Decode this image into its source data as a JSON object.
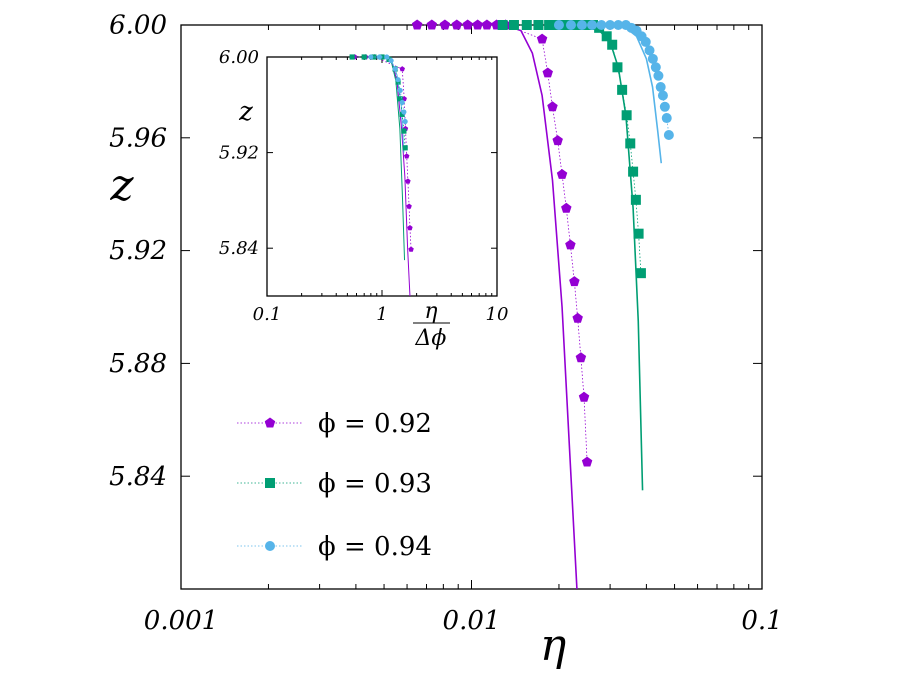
{
  "chart_data": [
    {
      "type": "scatter",
      "panel": "main",
      "xlabel": "η",
      "ylabel": "z",
      "xscale": "log",
      "xlim": [
        0.001,
        0.1
      ],
      "ylim": [
        5.8,
        6.0
      ],
      "xticks": [
        0.001,
        0.01,
        0.1
      ],
      "xtick_labels": [
        "0.001",
        "0.01",
        "0.1"
      ],
      "yticks": [
        5.84,
        5.88,
        5.92,
        5.96,
        6.0
      ],
      "ytick_labels": [
        "5.84",
        "5.88",
        "5.92",
        "5.96",
        "6.00"
      ],
      "grid": false,
      "legend_position": "bottom-left",
      "series": [
        {
          "name": "ϕ = 0.92",
          "color": "#9400D3",
          "marker": "pentagon",
          "x": [
            0.0065,
            0.0073,
            0.0081,
            0.0089,
            0.0097,
            0.0105,
            0.0113,
            0.0122,
            0.0131,
            0.0175,
            0.0183,
            0.019,
            0.0198,
            0.0205,
            0.0212,
            0.0219,
            0.0226,
            0.0232,
            0.0238,
            0.0244,
            0.025
          ],
          "y": [
            6.0,
            6.0,
            6.0,
            6.0,
            6.0,
            6.0,
            6.0,
            6.0,
            6.0,
            5.995,
            5.983,
            5.971,
            5.959,
            5.947,
            5.935,
            5.922,
            5.909,
            5.896,
            5.882,
            5.868,
            5.845
          ]
        },
        {
          "name": "ϕ = 0.93",
          "color": "#009E73",
          "marker": "square",
          "x": [
            0.0128,
            0.014,
            0.0155,
            0.017,
            0.0185,
            0.02,
            0.0215,
            0.023,
            0.0245,
            0.0262,
            0.0275,
            0.0292,
            0.0305,
            0.0318,
            0.033,
            0.0342,
            0.0352,
            0.036,
            0.0368,
            0.0376,
            0.0383
          ],
          "y": [
            6.0,
            6.0,
            6.0,
            6.0,
            6.0,
            6.0,
            6.0,
            6.0,
            6.0,
            6.0,
            5.999,
            5.996,
            5.993,
            5.985,
            5.977,
            5.968,
            5.958,
            5.948,
            5.938,
            5.926,
            5.912
          ]
        },
        {
          "name": "ϕ = 0.94",
          "color": "#56B4E9",
          "marker": "circle",
          "x": [
            0.02,
            0.022,
            0.024,
            0.026,
            0.028,
            0.03,
            0.032,
            0.034,
            0.0355,
            0.037,
            0.0385,
            0.0398,
            0.041,
            0.0421,
            0.0431,
            0.044,
            0.0448,
            0.0456,
            0.0463,
            0.047,
            0.0478
          ],
          "y": [
            6.0,
            6.0,
            6.0,
            6.0,
            6.0,
            6.0,
            6.0,
            6.0,
            5.999,
            5.998,
            5.996,
            5.994,
            5.991,
            5.988,
            5.985,
            5.982,
            5.978,
            5.975,
            5.971,
            5.967,
            5.961
          ]
        }
      ],
      "fit_lines": [
        {
          "color": "#9400D3",
          "x": [
            0.013,
            0.0148,
            0.0162,
            0.0175,
            0.019,
            0.0205,
            0.022,
            0.0232
          ],
          "y": [
            6.0,
            5.998,
            5.99,
            5.975,
            5.945,
            5.9,
            5.84,
            5.795
          ]
        },
        {
          "color": "#009E73",
          "x": [
            0.024,
            0.027,
            0.03,
            0.032,
            0.034,
            0.036,
            0.0375,
            0.0388
          ],
          "y": [
            6.0,
            5.999,
            5.994,
            5.985,
            5.968,
            5.935,
            5.895,
            5.835
          ]
        },
        {
          "color": "#56B4E9",
          "x": [
            0.03,
            0.034,
            0.037,
            0.04,
            0.042,
            0.0438,
            0.045
          ],
          "y": [
            6.0,
            5.999,
            5.996,
            5.988,
            5.978,
            5.962,
            5.951
          ]
        }
      ]
    },
    {
      "type": "scatter",
      "panel": "inset",
      "xlabel_num": "η",
      "xlabel_den": "Δϕ",
      "ylabel": "z",
      "xscale": "log",
      "xlim": [
        0.1,
        10
      ],
      "ylim": [
        5.8,
        6.0
      ],
      "xticks": [
        0.1,
        1,
        10
      ],
      "xtick_labels": [
        "0.1",
        "1",
        "10"
      ],
      "yticks": [
        5.84,
        5.92,
        6.0
      ],
      "ytick_labels": [
        "5.84",
        "5.92",
        "6.00"
      ],
      "series": [
        {
          "name": "ϕ = 0.92",
          "color": "#9400D3",
          "marker": "pentagon",
          "x": [
            0.58,
            0.72,
            0.86,
            1.5,
            1.56,
            1.6,
            1.64,
            1.68,
            1.72,
            1.75,
            1.79
          ],
          "y": [
            6.0,
            6.0,
            6.0,
            5.99,
            5.965,
            5.94,
            5.917,
            5.896,
            5.875,
            5.857,
            5.839
          ]
        },
        {
          "name": "ϕ = 0.93",
          "color": "#009E73",
          "marker": "square",
          "x": [
            0.55,
            0.7,
            0.85,
            1.0,
            1.15,
            1.3,
            1.38,
            1.44,
            1.5,
            1.55,
            1.59
          ],
          "y": [
            6.0,
            6.0,
            6.0,
            6.0,
            5.998,
            5.99,
            5.979,
            5.965,
            5.952,
            5.938,
            5.924
          ]
        },
        {
          "name": "ϕ = 0.94",
          "color": "#56B4E9",
          "marker": "circle",
          "x": [
            0.8,
            0.95,
            1.1,
            1.2,
            1.3,
            1.38,
            1.44,
            1.5,
            1.55,
            1.59
          ],
          "y": [
            6.0,
            6.0,
            6.0,
            5.997,
            5.99,
            5.981,
            5.972,
            5.962,
            5.954,
            5.946
          ]
        }
      ],
      "fit_lines": [
        {
          "color": "#9400D3",
          "x": [
            1.0,
            1.2,
            1.35,
            1.48,
            1.58,
            1.67,
            1.75
          ],
          "y": [
            6.0,
            5.998,
            5.98,
            5.94,
            5.9,
            5.84,
            5.8
          ]
        },
        {
          "color": "#009E73",
          "x": [
            1.0,
            1.2,
            1.32,
            1.43,
            1.51,
            1.57
          ],
          "y": [
            6.0,
            5.997,
            5.98,
            5.94,
            5.88,
            5.83
          ]
        },
        {
          "color": "#56B4E9",
          "x": [
            1.0,
            1.2,
            1.35,
            1.47,
            1.55
          ],
          "y": [
            6.0,
            5.998,
            5.985,
            5.96,
            5.92
          ]
        }
      ]
    }
  ]
}
